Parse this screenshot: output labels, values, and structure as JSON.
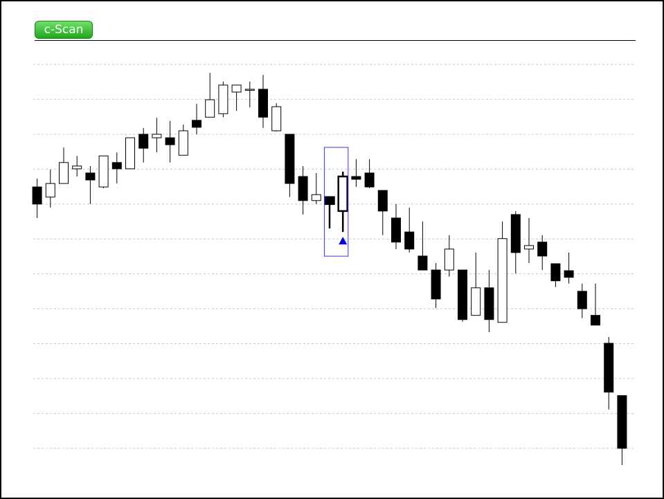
{
  "header": {
    "logo": "c-Scan"
  },
  "chart_data": {
    "type": "candlestick",
    "open": [
      8.49,
      8.2,
      8.59,
      9.01,
      8.89,
      8.49,
      9.19,
      9.01,
      10.0,
      9.9,
      9.9,
      9.4,
      10.4,
      10.49,
      10.59,
      11.21,
      11.27,
      11.29,
      10.1,
      10.0,
      8.79,
      8.1,
      8.2,
      7.8,
      8.79,
      8.89,
      8.39,
      7.6,
      7.2,
      6.51,
      6.11,
      6.11,
      6.11,
      4.81,
      5.6,
      4.61,
      7.7,
      6.71,
      6.91,
      6.29,
      6.09,
      5.5,
      4.81,
      4.01,
      2.51
    ],
    "high": [
      8.73,
      8.99,
      9.62,
      9.38,
      9.09,
      9.38,
      9.48,
      9.9,
      10.18,
      10.47,
      10.38,
      10.28,
      10.87,
      11.76,
      11.51,
      11.41,
      11.51,
      11.7,
      10.89,
      10.0,
      9.09,
      8.89,
      8.2,
      8.93,
      9.29,
      9.29,
      8.39,
      8.0,
      7.9,
      7.5,
      6.31,
      7.11,
      6.11,
      6.61,
      6.11,
      7.5,
      7.8,
      7.6,
      7.11,
      6.29,
      6.61,
      5.72,
      5.72,
      4.19,
      2.51
    ],
    "low": [
      7.6,
      7.9,
      8.59,
      8.79,
      8.0,
      8.45,
      8.59,
      9.01,
      9.19,
      9.48,
      9.19,
      9.4,
      10.0,
      10.49,
      10.49,
      10.67,
      10.77,
      10.18,
      10.08,
      8.2,
      7.7,
      8.0,
      7.3,
      7.2,
      8.49,
      8.45,
      7.11,
      6.71,
      6.61,
      6.11,
      5.02,
      5.92,
      4.63,
      4.81,
      4.33,
      4.61,
      6.01,
      6.31,
      6.11,
      5.62,
      5.72,
      4.73,
      4.53,
      2.11,
      0.52
    ],
    "close": [
      8.0,
      8.59,
      9.19,
      9.09,
      8.69,
      9.38,
      9.01,
      9.9,
      9.6,
      10.0,
      9.7,
      10.1,
      10.2,
      10.99,
      11.41,
      11.41,
      11.29,
      10.49,
      10.79,
      8.59,
      8.1,
      8.27,
      8.0,
      8.79,
      8.71,
      8.49,
      7.8,
      6.91,
      6.71,
      6.11,
      5.28,
      6.71,
      4.69,
      5.6,
      4.69,
      7.01,
      6.61,
      6.81,
      6.51,
      5.8,
      5.9,
      5.0,
      4.53,
      2.61,
      1.0
    ],
    "up_color": "#ffffff",
    "down_color": "#000000",
    "marker_color": "#0000ee",
    "box_color": "#3a3acc",
    "pattern_indices": [
      22,
      23
    ],
    "ylim": [
      0.4,
      12.4
    ],
    "yticks": [
      1,
      2,
      3,
      4,
      5,
      6,
      7,
      8,
      9,
      10,
      11,
      12
    ],
    "grid": true
  }
}
